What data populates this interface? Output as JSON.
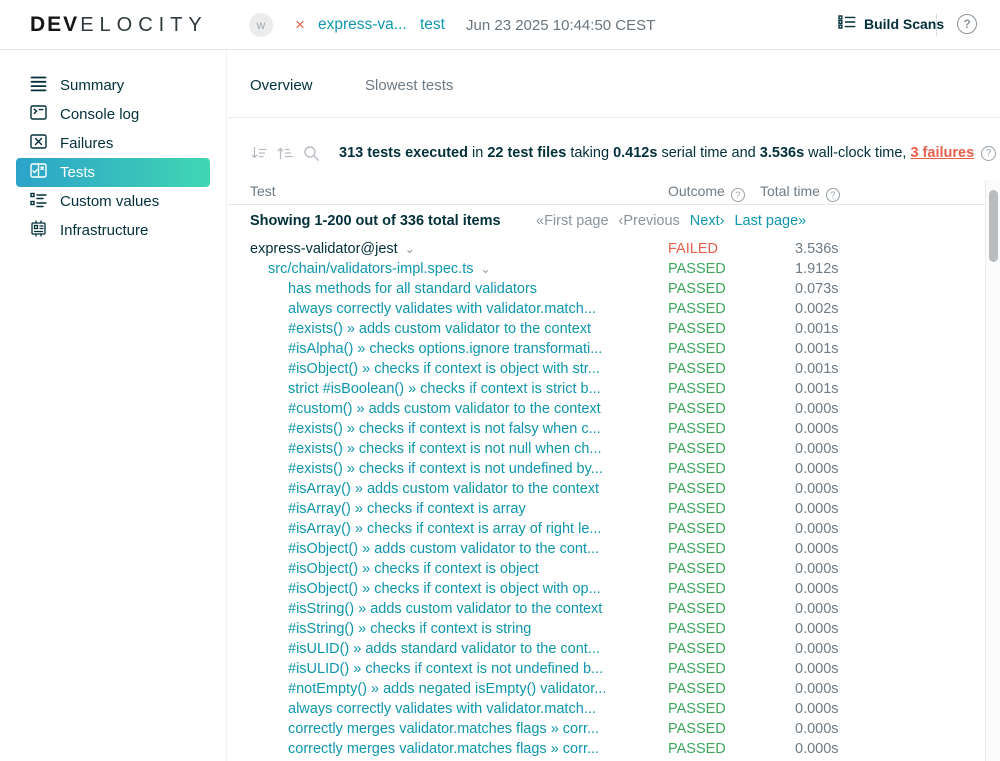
{
  "colors": {
    "accent_teal": "#0E97AC",
    "passed_green": "#3CA65B",
    "failed_red": "#E8604C",
    "dark_text": "#02303A",
    "selected_gradient_start": "#2BA3C9",
    "selected_gradient_end": "#41D6B3"
  },
  "icons": {
    "help": "?",
    "close": "×",
    "chevron_down": "⌄"
  },
  "header": {
    "logo_dev": "DEV",
    "logo_rest": "ELOCITY",
    "avatar_label": "w",
    "build_name": "express-va...",
    "build_task": "test",
    "timestamp": "Jun 23 2025 10:44:50 CEST",
    "build_scans_label": "Build Scans"
  },
  "sidebar": {
    "items": [
      {
        "label": "Summary",
        "icon": "summary-icon",
        "selected": false
      },
      {
        "label": "Console log",
        "icon": "console-icon",
        "selected": false
      },
      {
        "label": "Failures",
        "icon": "failures-icon",
        "selected": false
      },
      {
        "label": "Tests",
        "icon": "tests-icon",
        "selected": true
      },
      {
        "label": "Custom values",
        "icon": "custom-values-icon",
        "selected": false
      },
      {
        "label": "Infrastructure",
        "icon": "infrastructure-icon",
        "selected": false
      }
    ]
  },
  "tabs": [
    {
      "label": "Overview",
      "selected": true
    },
    {
      "label": "Slowest tests",
      "selected": false
    }
  ],
  "summary": {
    "segments": [
      {
        "text": "313 tests executed",
        "bold": true
      },
      {
        "text": " in "
      },
      {
        "text": "22 test files",
        "bold": true
      },
      {
        "text": " taking "
      },
      {
        "text": "0.412s",
        "bold": true
      },
      {
        "text": " serial time and "
      },
      {
        "text": "3.536s",
        "bold": true
      },
      {
        "text": " wall-clock time, "
      }
    ],
    "failures_link": "3 failures"
  },
  "table": {
    "columns": {
      "test": "Test",
      "outcome": "Outcome",
      "total_time": "Total time"
    },
    "pagination": {
      "showing": "Showing 1-200 out of 336 total items",
      "first": "«First page",
      "previous": "‹Previous",
      "next": "Next›",
      "last": "Last page»"
    },
    "rows": [
      {
        "level": 1,
        "expandable": true,
        "name": "express-validator@jest",
        "outcome": "FAILED",
        "time": "3.536s"
      },
      {
        "level": 2,
        "expandable": true,
        "name": "src/chain/validators-impl.spec.ts",
        "outcome": "PASSED",
        "time": "1.912s"
      },
      {
        "level": 3,
        "expandable": false,
        "name": "has methods for all standard validators",
        "outcome": "PASSED",
        "time": "0.073s"
      },
      {
        "level": 3,
        "expandable": false,
        "name": "always correctly validates with validator.match...",
        "outcome": "PASSED",
        "time": "0.002s"
      },
      {
        "level": 3,
        "expandable": false,
        "name": "#exists() » adds custom validator to the context",
        "outcome": "PASSED",
        "time": "0.001s"
      },
      {
        "level": 3,
        "expandable": false,
        "name": "#isAlpha() » checks options.ignore transformati...",
        "outcome": "PASSED",
        "time": "0.001s"
      },
      {
        "level": 3,
        "expandable": false,
        "name": "#isObject() » checks if context is object with str...",
        "outcome": "PASSED",
        "time": "0.001s"
      },
      {
        "level": 3,
        "expandable": false,
        "name": "strict #isBoolean() » checks if context is strict b...",
        "outcome": "PASSED",
        "time": "0.001s"
      },
      {
        "level": 3,
        "expandable": false,
        "name": "#custom() » adds custom validator to the context",
        "outcome": "PASSED",
        "time": "0.000s"
      },
      {
        "level": 3,
        "expandable": false,
        "name": "#exists() » checks if context is not falsy when c...",
        "outcome": "PASSED",
        "time": "0.000s"
      },
      {
        "level": 3,
        "expandable": false,
        "name": "#exists() » checks if context is not null when ch...",
        "outcome": "PASSED",
        "time": "0.000s"
      },
      {
        "level": 3,
        "expandable": false,
        "name": "#exists() » checks if context is not undefined by...",
        "outcome": "PASSED",
        "time": "0.000s"
      },
      {
        "level": 3,
        "expandable": false,
        "name": "#isArray() » adds custom validator to the context",
        "outcome": "PASSED",
        "time": "0.000s"
      },
      {
        "level": 3,
        "expandable": false,
        "name": "#isArray() » checks if context is array",
        "outcome": "PASSED",
        "time": "0.000s"
      },
      {
        "level": 3,
        "expandable": false,
        "name": "#isArray() » checks if context is array of right le...",
        "outcome": "PASSED",
        "time": "0.000s"
      },
      {
        "level": 3,
        "expandable": false,
        "name": "#isObject() » adds custom validator to the cont...",
        "outcome": "PASSED",
        "time": "0.000s"
      },
      {
        "level": 3,
        "expandable": false,
        "name": "#isObject() » checks if context is object",
        "outcome": "PASSED",
        "time": "0.000s"
      },
      {
        "level": 3,
        "expandable": false,
        "name": "#isObject() » checks if context is object with op...",
        "outcome": "PASSED",
        "time": "0.000s"
      },
      {
        "level": 3,
        "expandable": false,
        "name": "#isString() » adds custom validator to the context",
        "outcome": "PASSED",
        "time": "0.000s"
      },
      {
        "level": 3,
        "expandable": false,
        "name": "#isString() » checks if context is string",
        "outcome": "PASSED",
        "time": "0.000s"
      },
      {
        "level": 3,
        "expandable": false,
        "name": "#isULID() » adds standard validator to the cont...",
        "outcome": "PASSED",
        "time": "0.000s"
      },
      {
        "level": 3,
        "expandable": false,
        "name": "#isULID() » checks if context is not undefined b...",
        "outcome": "PASSED",
        "time": "0.000s"
      },
      {
        "level": 3,
        "expandable": false,
        "name": "#notEmpty() » adds negated isEmpty() validator...",
        "outcome": "PASSED",
        "time": "0.000s"
      },
      {
        "level": 3,
        "expandable": false,
        "name": "always correctly validates with validator.match...",
        "outcome": "PASSED",
        "time": "0.000s"
      },
      {
        "level": 3,
        "expandable": false,
        "name": "correctly merges validator.matches flags » corr...",
        "outcome": "PASSED",
        "time": "0.000s"
      },
      {
        "level": 3,
        "expandable": false,
        "name": "correctly merges validator.matches flags » corr...",
        "outcome": "PASSED",
        "time": "0.000s"
      }
    ]
  }
}
